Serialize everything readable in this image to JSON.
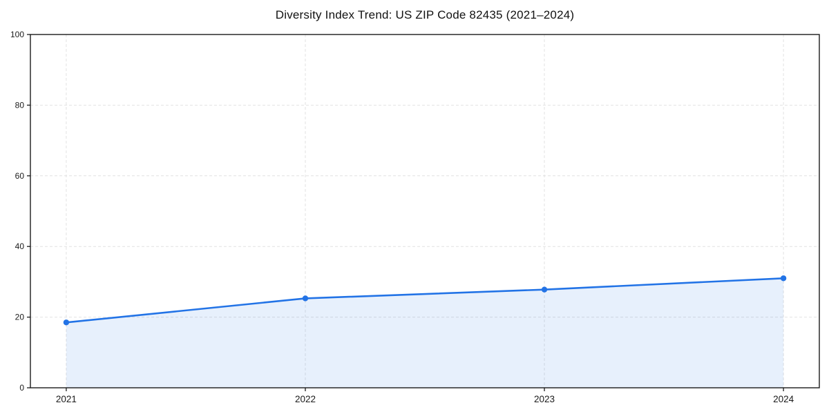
{
  "title": "Diversity Index Trend: US ZIP Code 82435 (2021–2024)",
  "chart_data": {
    "type": "area",
    "title": "Diversity Index Trend: US ZIP Code 82435 (2021–2024)",
    "categories": [
      "2021",
      "2022",
      "2023",
      "2024"
    ],
    "series": [
      {
        "name": "Diversity Index",
        "values": [
          18.5,
          25.3,
          27.8,
          31.0
        ]
      }
    ],
    "xlabel": "",
    "ylabel": "",
    "ylim": [
      0,
      100
    ],
    "y_ticks": [
      0,
      20,
      40,
      60,
      80,
      100
    ],
    "y_tick_labels": [
      "0",
      "20",
      "40",
      "60",
      "80",
      "100"
    ],
    "grid": true,
    "grid_style": "dashed",
    "legend": "none",
    "markers": true,
    "area_fill": true,
    "colors": {
      "line": "#2273e6",
      "marker": "#2273e6",
      "fill": "#2273e6",
      "fill_opacity": 0.11,
      "grid": "#e2e2e2",
      "axis": "#1a1a1a",
      "tick_text": "#1a1a1a"
    }
  }
}
